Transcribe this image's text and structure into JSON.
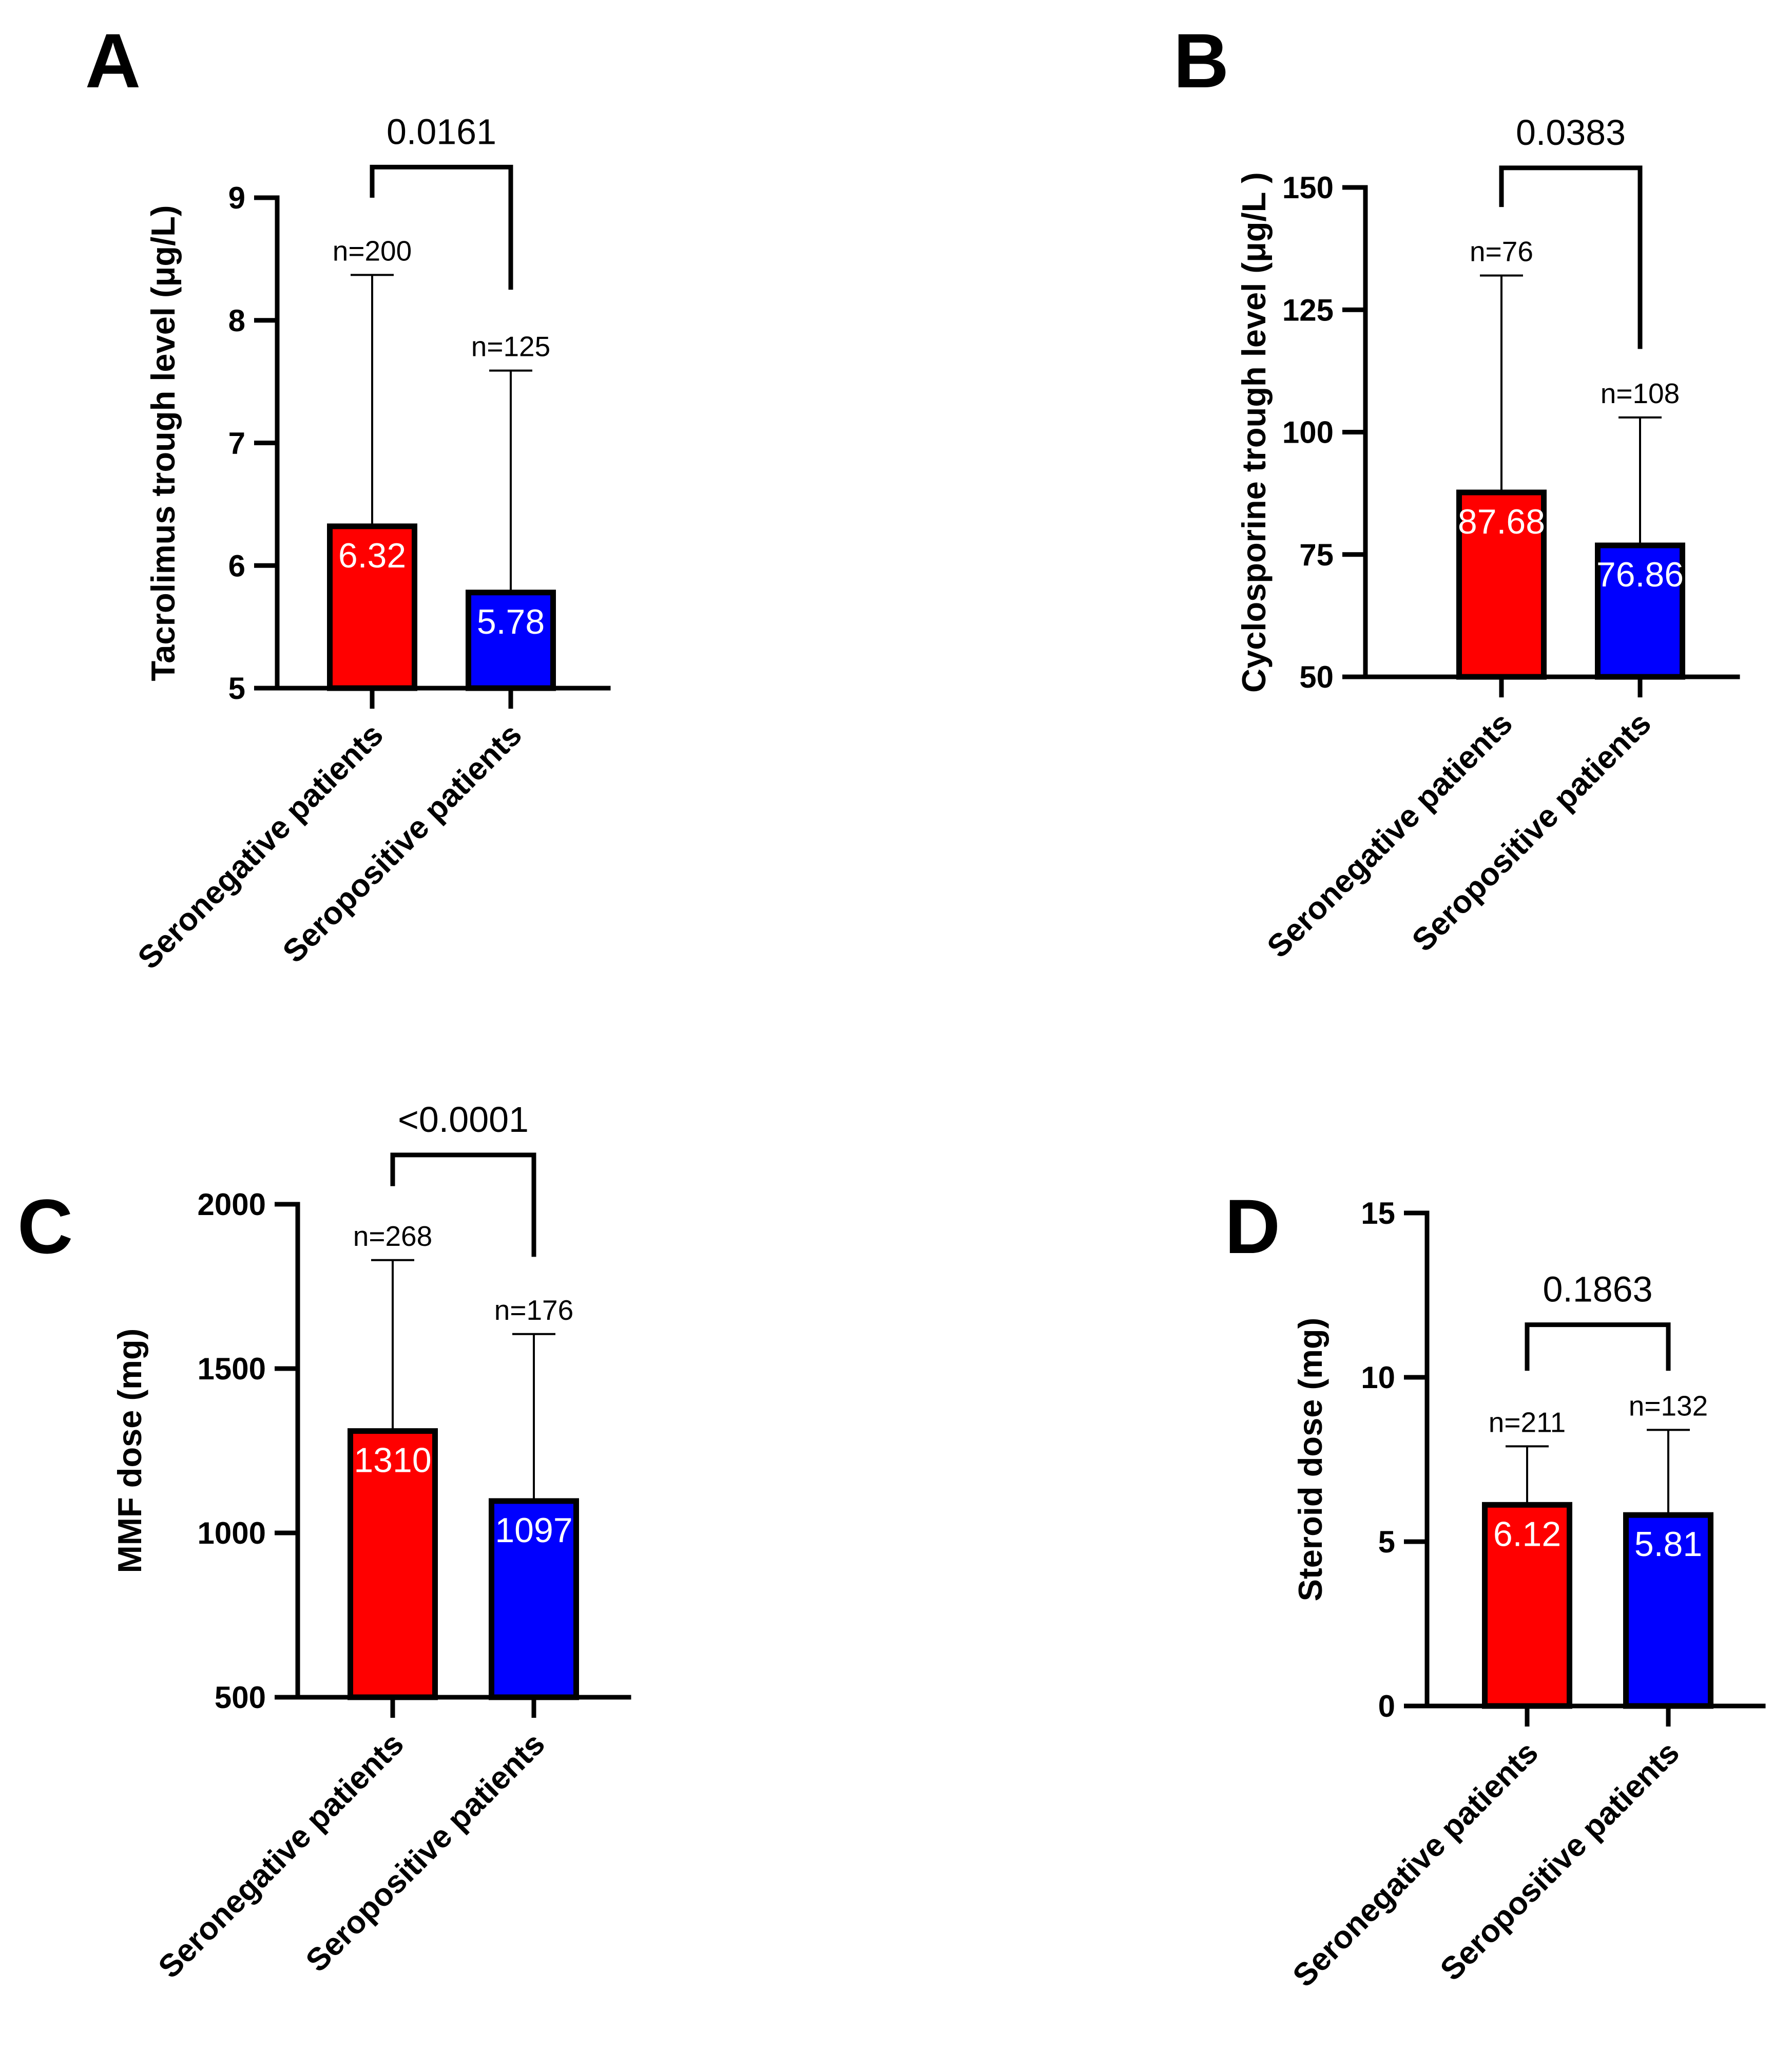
{
  "chart_data": [
    {
      "panel": "A",
      "type": "bar",
      "title": "",
      "xlabel": "",
      "ylabel": "Tacrolimus trough level (μg/L)",
      "categories": [
        "Seronegative patients",
        "Seropositive patients"
      ],
      "values": [
        6.32,
        5.78
      ],
      "error_upper": [
        8.37,
        7.59
      ],
      "n_labels": [
        "n=200",
        "n=125"
      ],
      "value_labels": [
        "6.32",
        "5.78"
      ],
      "p_value": "0.0161",
      "ylim": [
        5,
        9
      ],
      "yticks": [
        5,
        6,
        7,
        8,
        9
      ],
      "bracket_top": 9.25,
      "bracket_left_end": 9.0,
      "bracket_right_end": 8.25,
      "bar_colors": [
        "#ff0000",
        "#0000ff"
      ]
    },
    {
      "panel": "B",
      "type": "bar",
      "title": "",
      "xlabel": "",
      "ylabel": "Cyclosporine trough level (μg/L )",
      "categories": [
        "Seronegative patients",
        "Seropositive patients"
      ],
      "values": [
        87.68,
        76.86
      ],
      "error_upper": [
        132,
        103
      ],
      "n_labels": [
        "n=76",
        "n=108"
      ],
      "value_labels": [
        "87.68",
        "76.86"
      ],
      "p_value": "0.0383",
      "ylim": [
        50,
        150
      ],
      "yticks": [
        50,
        75,
        100,
        125,
        150
      ],
      "bracket_top": 154,
      "bracket_left_end": 146,
      "bracket_right_end": 117,
      "bar_colors": [
        "#ff0000",
        "#0000ff"
      ]
    },
    {
      "panel": "C",
      "type": "bar",
      "title": "",
      "xlabel": "",
      "ylabel": "MMF dose (mg)",
      "categories": [
        "Seronegative patients",
        "Seropositive patients"
      ],
      "values": [
        1310,
        1097
      ],
      "error_upper": [
        1830,
        1605
      ],
      "n_labels": [
        "n=268",
        "n=176"
      ],
      "value_labels": [
        "1310",
        "1097"
      ],
      "p_value": "<0.0001",
      "ylim": [
        500,
        2000
      ],
      "yticks": [
        500,
        1000,
        1500,
        2000
      ],
      "bracket_top": 2150,
      "bracket_left_end": 2055,
      "bracket_right_end": 1840,
      "bar_colors": [
        "#ff0000",
        "#0000ff"
      ]
    },
    {
      "panel": "D",
      "type": "bar",
      "title": "",
      "xlabel": "",
      "ylabel": "Steroid dose (mg)",
      "categories": [
        "Seronegative patients",
        "Seropositive patients"
      ],
      "values": [
        6.12,
        5.81
      ],
      "error_upper": [
        7.9,
        8.4
      ],
      "n_labels": [
        "n=211",
        "n=132"
      ],
      "value_labels": [
        "6.12",
        "5.81"
      ],
      "p_value": "0.1863",
      "ylim": [
        0,
        15
      ],
      "yticks": [
        0,
        5,
        10,
        15
      ],
      "bracket_top": 11.6,
      "bracket_left_end": 10.2,
      "bracket_right_end": 10.2,
      "bar_colors": [
        "#ff0000",
        "#0000ff"
      ]
    }
  ]
}
